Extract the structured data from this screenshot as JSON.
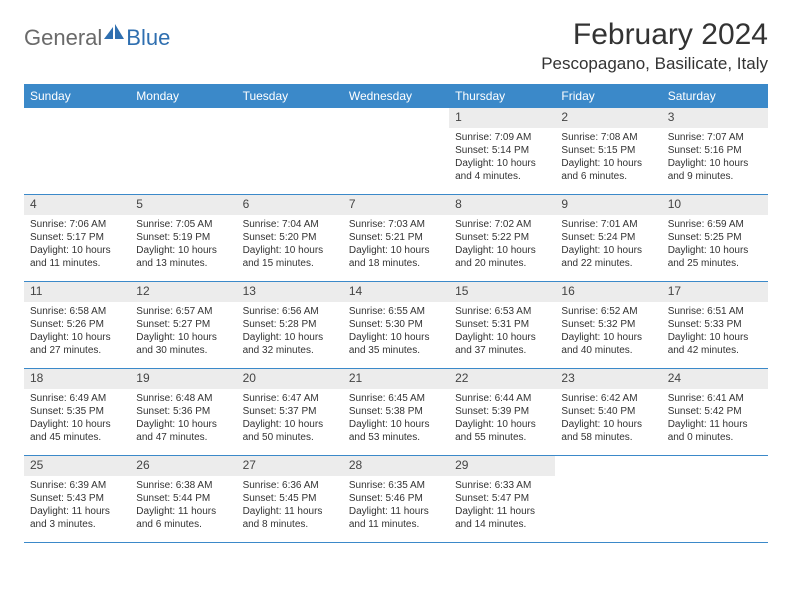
{
  "logo": {
    "text_gray": "General",
    "text_blue": "Blue"
  },
  "title": "February 2024",
  "location": "Pescopagano, Basilicate, Italy",
  "colors": {
    "header_bg": "#3b89c9",
    "header_text": "#ffffff",
    "daynum_bg": "#ececec",
    "border": "#3b89c9",
    "logo_gray": "#6a6a6a",
    "logo_blue": "#2f6fb0"
  },
  "day_names": [
    "Sunday",
    "Monday",
    "Tuesday",
    "Wednesday",
    "Thursday",
    "Friday",
    "Saturday"
  ],
  "weeks": [
    [
      {
        "n": "",
        "sr": "",
        "ss": "",
        "dl": ""
      },
      {
        "n": "",
        "sr": "",
        "ss": "",
        "dl": ""
      },
      {
        "n": "",
        "sr": "",
        "ss": "",
        "dl": ""
      },
      {
        "n": "",
        "sr": "",
        "ss": "",
        "dl": ""
      },
      {
        "n": "1",
        "sr": "Sunrise: 7:09 AM",
        "ss": "Sunset: 5:14 PM",
        "dl": "Daylight: 10 hours and 4 minutes."
      },
      {
        "n": "2",
        "sr": "Sunrise: 7:08 AM",
        "ss": "Sunset: 5:15 PM",
        "dl": "Daylight: 10 hours and 6 minutes."
      },
      {
        "n": "3",
        "sr": "Sunrise: 7:07 AM",
        "ss": "Sunset: 5:16 PM",
        "dl": "Daylight: 10 hours and 9 minutes."
      }
    ],
    [
      {
        "n": "4",
        "sr": "Sunrise: 7:06 AM",
        "ss": "Sunset: 5:17 PM",
        "dl": "Daylight: 10 hours and 11 minutes."
      },
      {
        "n": "5",
        "sr": "Sunrise: 7:05 AM",
        "ss": "Sunset: 5:19 PM",
        "dl": "Daylight: 10 hours and 13 minutes."
      },
      {
        "n": "6",
        "sr": "Sunrise: 7:04 AM",
        "ss": "Sunset: 5:20 PM",
        "dl": "Daylight: 10 hours and 15 minutes."
      },
      {
        "n": "7",
        "sr": "Sunrise: 7:03 AM",
        "ss": "Sunset: 5:21 PM",
        "dl": "Daylight: 10 hours and 18 minutes."
      },
      {
        "n": "8",
        "sr": "Sunrise: 7:02 AM",
        "ss": "Sunset: 5:22 PM",
        "dl": "Daylight: 10 hours and 20 minutes."
      },
      {
        "n": "9",
        "sr": "Sunrise: 7:01 AM",
        "ss": "Sunset: 5:24 PM",
        "dl": "Daylight: 10 hours and 22 minutes."
      },
      {
        "n": "10",
        "sr": "Sunrise: 6:59 AM",
        "ss": "Sunset: 5:25 PM",
        "dl": "Daylight: 10 hours and 25 minutes."
      }
    ],
    [
      {
        "n": "11",
        "sr": "Sunrise: 6:58 AM",
        "ss": "Sunset: 5:26 PM",
        "dl": "Daylight: 10 hours and 27 minutes."
      },
      {
        "n": "12",
        "sr": "Sunrise: 6:57 AM",
        "ss": "Sunset: 5:27 PM",
        "dl": "Daylight: 10 hours and 30 minutes."
      },
      {
        "n": "13",
        "sr": "Sunrise: 6:56 AM",
        "ss": "Sunset: 5:28 PM",
        "dl": "Daylight: 10 hours and 32 minutes."
      },
      {
        "n": "14",
        "sr": "Sunrise: 6:55 AM",
        "ss": "Sunset: 5:30 PM",
        "dl": "Daylight: 10 hours and 35 minutes."
      },
      {
        "n": "15",
        "sr": "Sunrise: 6:53 AM",
        "ss": "Sunset: 5:31 PM",
        "dl": "Daylight: 10 hours and 37 minutes."
      },
      {
        "n": "16",
        "sr": "Sunrise: 6:52 AM",
        "ss": "Sunset: 5:32 PM",
        "dl": "Daylight: 10 hours and 40 minutes."
      },
      {
        "n": "17",
        "sr": "Sunrise: 6:51 AM",
        "ss": "Sunset: 5:33 PM",
        "dl": "Daylight: 10 hours and 42 minutes."
      }
    ],
    [
      {
        "n": "18",
        "sr": "Sunrise: 6:49 AM",
        "ss": "Sunset: 5:35 PM",
        "dl": "Daylight: 10 hours and 45 minutes."
      },
      {
        "n": "19",
        "sr": "Sunrise: 6:48 AM",
        "ss": "Sunset: 5:36 PM",
        "dl": "Daylight: 10 hours and 47 minutes."
      },
      {
        "n": "20",
        "sr": "Sunrise: 6:47 AM",
        "ss": "Sunset: 5:37 PM",
        "dl": "Daylight: 10 hours and 50 minutes."
      },
      {
        "n": "21",
        "sr": "Sunrise: 6:45 AM",
        "ss": "Sunset: 5:38 PM",
        "dl": "Daylight: 10 hours and 53 minutes."
      },
      {
        "n": "22",
        "sr": "Sunrise: 6:44 AM",
        "ss": "Sunset: 5:39 PM",
        "dl": "Daylight: 10 hours and 55 minutes."
      },
      {
        "n": "23",
        "sr": "Sunrise: 6:42 AM",
        "ss": "Sunset: 5:40 PM",
        "dl": "Daylight: 10 hours and 58 minutes."
      },
      {
        "n": "24",
        "sr": "Sunrise: 6:41 AM",
        "ss": "Sunset: 5:42 PM",
        "dl": "Daylight: 11 hours and 0 minutes."
      }
    ],
    [
      {
        "n": "25",
        "sr": "Sunrise: 6:39 AM",
        "ss": "Sunset: 5:43 PM",
        "dl": "Daylight: 11 hours and 3 minutes."
      },
      {
        "n": "26",
        "sr": "Sunrise: 6:38 AM",
        "ss": "Sunset: 5:44 PM",
        "dl": "Daylight: 11 hours and 6 minutes."
      },
      {
        "n": "27",
        "sr": "Sunrise: 6:36 AM",
        "ss": "Sunset: 5:45 PM",
        "dl": "Daylight: 11 hours and 8 minutes."
      },
      {
        "n": "28",
        "sr": "Sunrise: 6:35 AM",
        "ss": "Sunset: 5:46 PM",
        "dl": "Daylight: 11 hours and 11 minutes."
      },
      {
        "n": "29",
        "sr": "Sunrise: 6:33 AM",
        "ss": "Sunset: 5:47 PM",
        "dl": "Daylight: 11 hours and 14 minutes."
      },
      {
        "n": "",
        "sr": "",
        "ss": "",
        "dl": ""
      },
      {
        "n": "",
        "sr": "",
        "ss": "",
        "dl": ""
      }
    ]
  ]
}
